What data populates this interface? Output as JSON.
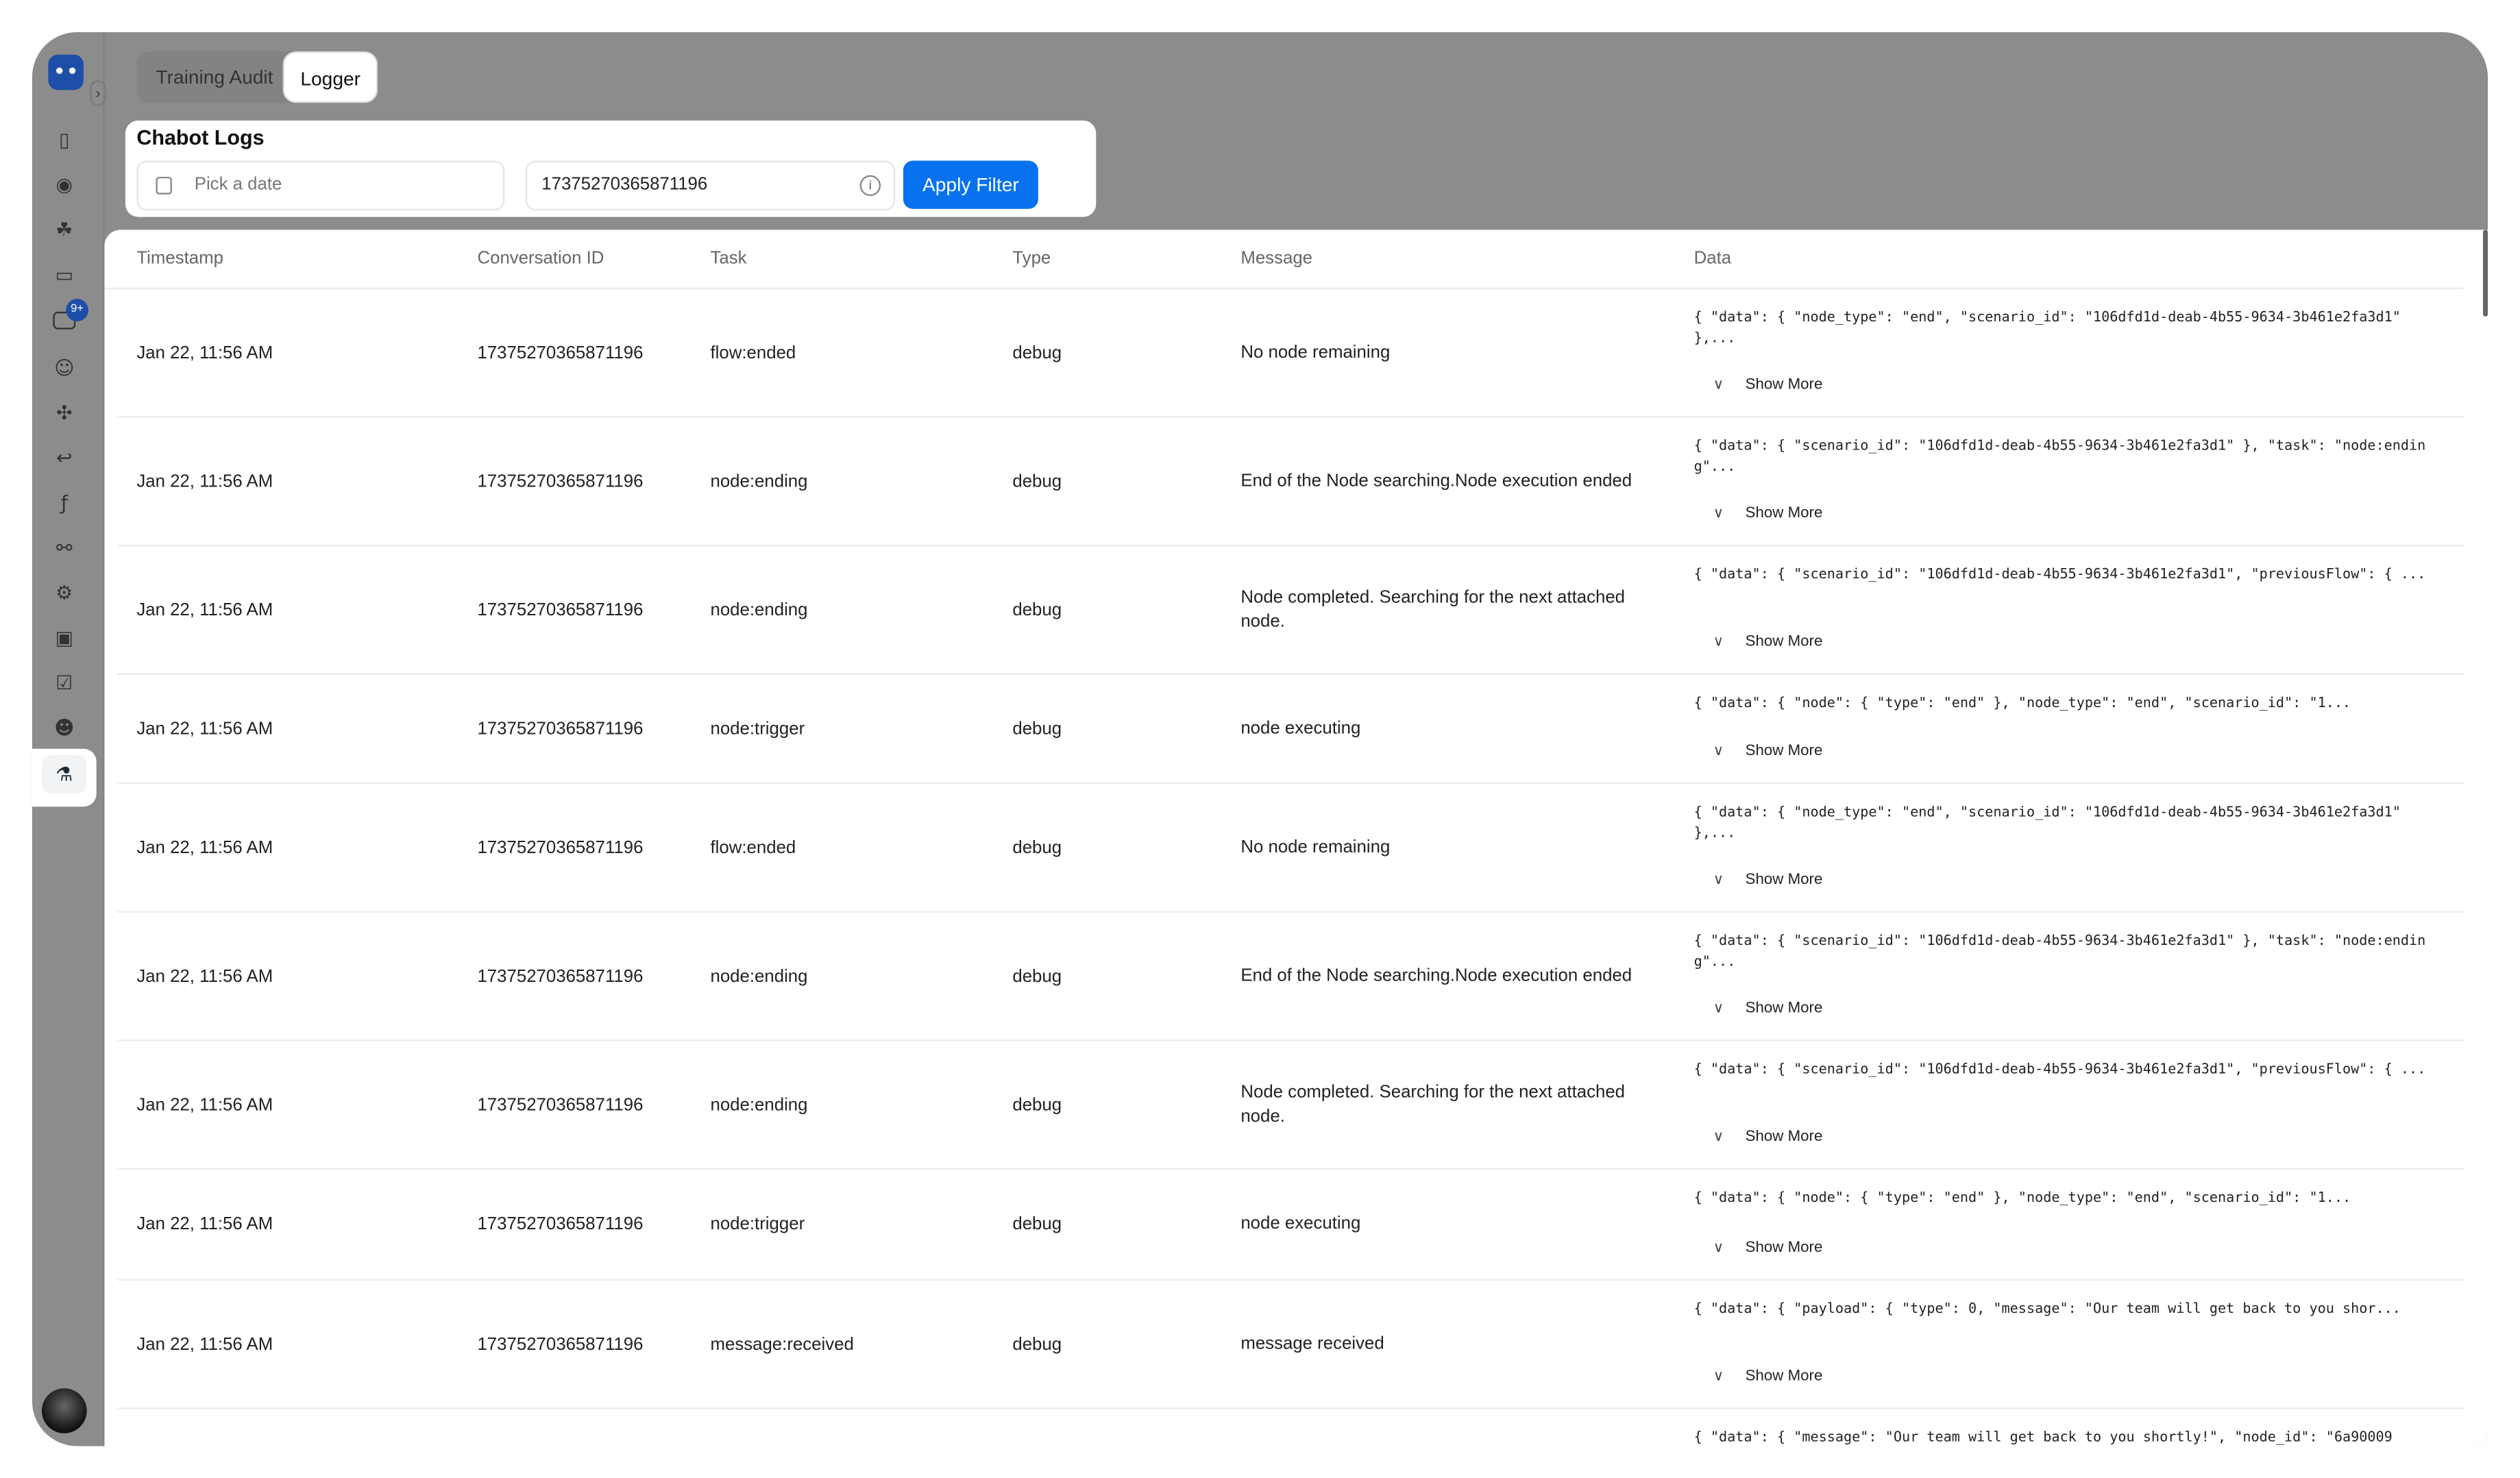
{
  "tabs": [
    "Training Audit",
    "Logger"
  ],
  "filter": {
    "title": "Chabot Logs",
    "date_placeholder": "Pick a date",
    "conversation_id": "17375270365871196",
    "apply_label": "Apply Filter"
  },
  "sidebar": {
    "badge": "9+",
    "icons": [
      "dashboard-icon",
      "broadcast-icon",
      "brain-icon",
      "book-icon",
      "chat-icon",
      "contacts-icon",
      "puzzle-icon",
      "back-icon",
      "function-icon",
      "integration-icon",
      "settings-icon",
      "bot-icon",
      "user-check-icon",
      "users-icon",
      "flask-icon"
    ]
  },
  "colors": {
    "accent": "#0872ee",
    "brand": "#1e4fa8"
  },
  "table": {
    "columns": [
      "Timestamp",
      "Conversation ID",
      "Task",
      "Type",
      "Message",
      "Data"
    ],
    "show_more": "Show More",
    "rows": [
      {
        "ts": "Jan 22, 11:56 AM",
        "cid": "17375270365871196",
        "task": "flow:ended",
        "type": "debug",
        "msg": "No node remaining",
        "data": "{ \"data\": { \"node_type\": \"end\", \"scenario_id\": \"106dfd1d-deab-4b55-9634-3b461e2fa3d1\" },..."
      },
      {
        "ts": "Jan 22, 11:56 AM",
        "cid": "17375270365871196",
        "task": "node:ending",
        "type": "debug",
        "msg": "End of the Node searching.Node execution ended",
        "data": "{ \"data\": { \"scenario_id\": \"106dfd1d-deab-4b55-9634-3b461e2fa3d1\" }, \"task\": \"node:ending\"..."
      },
      {
        "ts": "Jan 22, 11:56 AM",
        "cid": "17375270365871196",
        "task": "node:ending",
        "type": "debug",
        "msg": "Node completed. Searching for the next attached node.",
        "data": "{ \"data\": { \"scenario_id\": \"106dfd1d-deab-4b55-9634-3b461e2fa3d1\", \"previousFlow\": { ..."
      },
      {
        "ts": "Jan 22, 11:56 AM",
        "cid": "17375270365871196",
        "task": "node:trigger",
        "type": "debug",
        "msg": "node executing",
        "data": "{ \"data\": { \"node\": { \"type\": \"end\" }, \"node_type\": \"end\", \"scenario_id\": \"1..."
      },
      {
        "ts": "Jan 22, 11:56 AM",
        "cid": "17375270365871196",
        "task": "flow:ended",
        "type": "debug",
        "msg": "No node remaining",
        "data": "{ \"data\": { \"node_type\": \"end\", \"scenario_id\": \"106dfd1d-deab-4b55-9634-3b461e2fa3d1\" },..."
      },
      {
        "ts": "Jan 22, 11:56 AM",
        "cid": "17375270365871196",
        "task": "node:ending",
        "type": "debug",
        "msg": "End of the Node searching.Node execution ended",
        "data": "{ \"data\": { \"scenario_id\": \"106dfd1d-deab-4b55-9634-3b461e2fa3d1\" }, \"task\": \"node:ending\"..."
      },
      {
        "ts": "Jan 22, 11:56 AM",
        "cid": "17375270365871196",
        "task": "node:ending",
        "type": "debug",
        "msg": "Node completed. Searching for the next attached node.",
        "data": "{ \"data\": { \"scenario_id\": \"106dfd1d-deab-4b55-9634-3b461e2fa3d1\", \"previousFlow\": { ..."
      },
      {
        "ts": "Jan 22, 11:56 AM",
        "cid": "17375270365871196",
        "task": "node:trigger",
        "type": "debug",
        "msg": "node executing",
        "data": "{ \"data\": { \"node\": { \"type\": \"end\" }, \"node_type\": \"end\", \"scenario_id\": \"1..."
      },
      {
        "ts": "Jan 22, 11:56 AM",
        "cid": "17375270365871196",
        "task": "message:received",
        "type": "debug",
        "msg": "message received",
        "data": "{ \"data\": { \"payload\": { \"type\": 0, \"message\": \"Our team will get back to you shor..."
      },
      {
        "ts": "",
        "cid": "",
        "task": "",
        "type": "",
        "msg": "",
        "data": "{ \"data\": { \"message\": \"Our team will get back to you shortly!\", \"node_id\": \"6a90009"
      }
    ]
  }
}
